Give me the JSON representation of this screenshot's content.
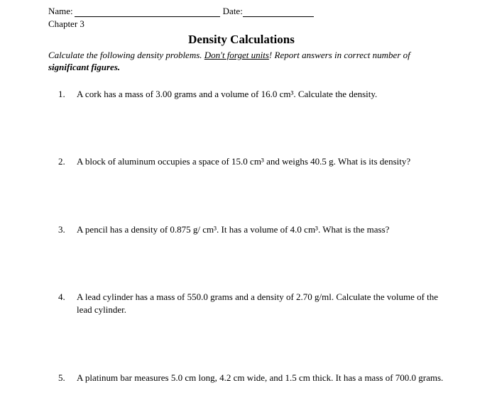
{
  "header": {
    "name_label": "Name:",
    "date_label": "Date:",
    "chapter": "Chapter 3"
  },
  "title": "Density Calculations",
  "instructions": {
    "part1": "Calculate the following density problems. ",
    "underlined": "Don't forget units",
    "part2": "! Report answers in correct number of ",
    "bold": "significant figures."
  },
  "questions": [
    {
      "num": "1.",
      "text": "A cork has a mass of 3.00 grams and a volume of 16.0 cm³. Calculate the density."
    },
    {
      "num": "2.",
      "text": "A block of aluminum occupies a space of 15.0 cm³ and weighs 40.5 g. What is its density?"
    },
    {
      "num": "3.",
      "text": "A pencil has a density of  0.875 g/ cm³.  It has a volume of 4.0 cm³.  What is the mass?"
    },
    {
      "num": "4.",
      "text": "A lead cylinder has a mass of 550.0 grams and a density of 2.70 g/ml.  Calculate the volume of the lead cylinder."
    },
    {
      "num": "5.",
      "text": "A platinum bar measures 5.0 cm long, 4.2 cm wide, and 1.5 cm thick. It has a mass of 700.0 grams."
    }
  ]
}
